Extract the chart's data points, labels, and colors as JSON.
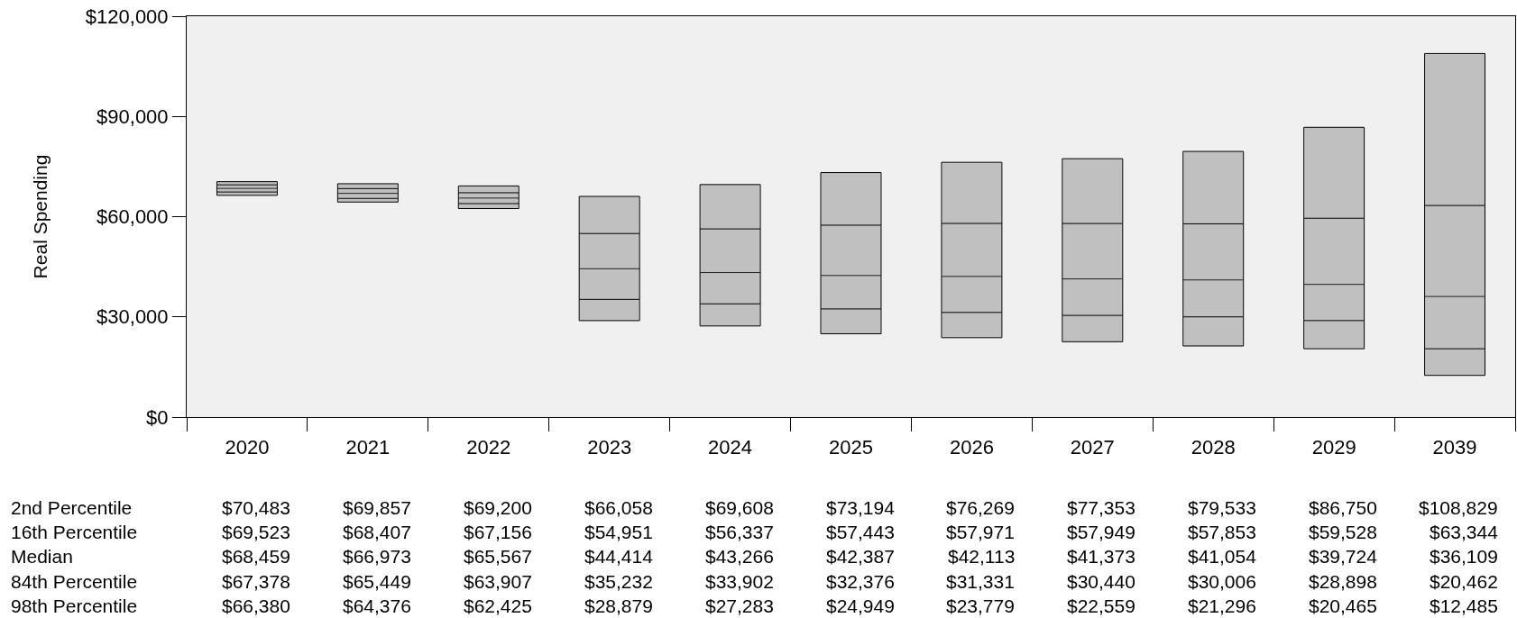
{
  "chart_data": {
    "type": "box",
    "categories": [
      "2020",
      "2021",
      "2022",
      "2023",
      "2024",
      "2025",
      "2026",
      "2027",
      "2028",
      "2029",
      "2039"
    ],
    "ylabel": "Real Spending",
    "color": "#c0c0c0",
    "ylim": [
      0,
      120000
    ],
    "yticks": [
      {
        "value": 0,
        "label": "$0"
      },
      {
        "value": 30000,
        "label": "$30,000"
      },
      {
        "value": 60000,
        "label": "$60,000"
      },
      {
        "value": 90000,
        "label": "$90,000"
      },
      {
        "value": 120000,
        "label": "$120,000"
      }
    ],
    "boxes": [
      {
        "low": 66380,
        "q1": 67378,
        "median": 68459,
        "q3": 69523,
        "high": 70483
      },
      {
        "low": 64376,
        "q1": 65449,
        "median": 66973,
        "q3": 68407,
        "high": 69857
      },
      {
        "low": 62425,
        "q1": 63907,
        "median": 65567,
        "q3": 67156,
        "high": 69200
      },
      {
        "low": 28879,
        "q1": 35232,
        "median": 44414,
        "q3": 54951,
        "high": 66058
      },
      {
        "low": 27283,
        "q1": 33902,
        "median": 43266,
        "q3": 56337,
        "high": 69608
      },
      {
        "low": 24949,
        "q1": 32376,
        "median": 42387,
        "q3": 57443,
        "high": 73194
      },
      {
        "low": 23779,
        "q1": 31331,
        "median": 42113,
        "q3": 57971,
        "high": 76269
      },
      {
        "low": 22559,
        "q1": 30440,
        "median": 41373,
        "q3": 57949,
        "high": 77353
      },
      {
        "low": 21296,
        "q1": 30006,
        "median": 41054,
        "q3": 57853,
        "high": 79533
      },
      {
        "low": 20465,
        "q1": 28898,
        "median": 39724,
        "q3": 59528,
        "high": 86750
      },
      {
        "low": 12485,
        "q1": 20462,
        "median": 36109,
        "q3": 63344,
        "high": 108829
      }
    ],
    "annotations": [
      "2nd Percentile",
      "16th Percentile",
      "Median",
      "84th Percentile",
      "98th Percentile"
    ],
    "value_labels": [
      [
        "$70,483",
        "$69,523",
        "$68,459",
        "$67,378",
        "$66,380"
      ],
      [
        "$69,857",
        "$68,407",
        "$66,973",
        "$65,449",
        "$64,376"
      ],
      [
        "$69,200",
        "$67,156",
        "$65,567",
        "$63,907",
        "$62,425"
      ],
      [
        "$66,058",
        "$54,951",
        "$44,414",
        "$35,232",
        "$28,879"
      ],
      [
        "$69,608",
        "$56,337",
        "$43,266",
        "$33,902",
        "$27,283"
      ],
      [
        "$73,194",
        "$57,443",
        "$42,387",
        "$32,376",
        "$24,949"
      ],
      [
        "$76,269",
        "$57,971",
        "$42,113",
        "$31,331",
        "$23,779"
      ],
      [
        "$77,353",
        "$57,949",
        "$41,373",
        "$30,440",
        "$22,559"
      ],
      [
        "$79,533",
        "$57,853",
        "$41,054",
        "$30,006",
        "$21,296"
      ],
      [
        "$86,750",
        "$59,528",
        "$39,724",
        "$28,898",
        "$20,465"
      ],
      [
        "$108,829",
        "$63,344",
        "$36,109",
        "$20,462",
        "$12,485"
      ]
    ]
  }
}
